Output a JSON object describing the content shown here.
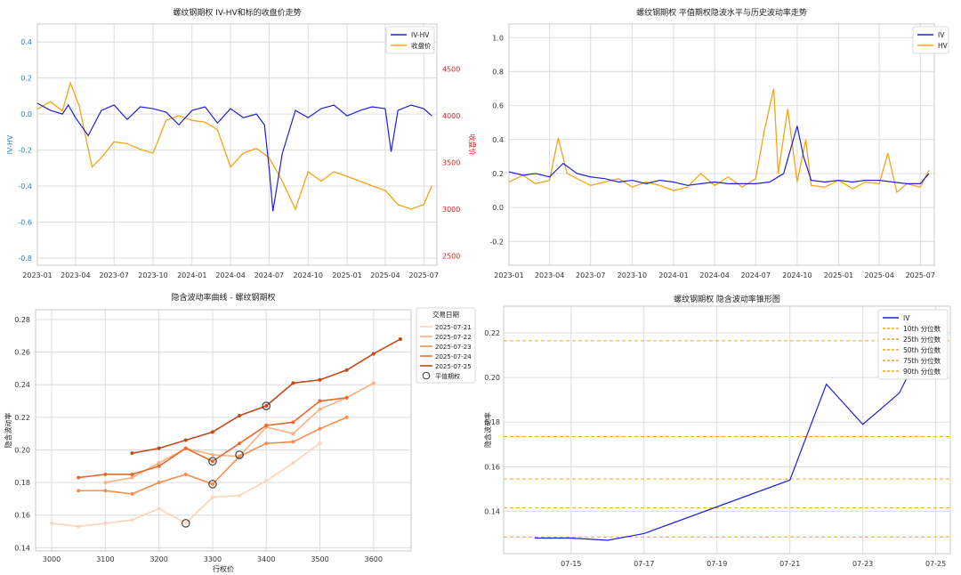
{
  "colors": {
    "iv": "#1f1fe0",
    "hv": "#f2a516",
    "price": "#f2a516",
    "iv_hv": "#1f1fe0",
    "axis_red": "#e02020",
    "axis_blue": "#2f7fbf",
    "grid": "#dcdcdc",
    "curve_palette": [
      "#fdd5b4",
      "#fcb07f",
      "#f98c4f",
      "#e7692c",
      "#c4481a"
    ],
    "pct_line": "#f2a516"
  },
  "chart_data": [
    {
      "id": "p1",
      "type": "line",
      "title": "螺纹钢期权 IV-HV和标的收盘价走势",
      "ylabel_left": "IV-HV",
      "ylabel_right": "收盘价",
      "left_ylim": [
        -0.84,
        0.5
      ],
      "left_yticks": [
        -0.8,
        -0.6,
        -0.4,
        -0.2,
        0.0,
        0.2,
        0.4
      ],
      "right_ylim": [
        2400,
        4980
      ],
      "right_yticks": [
        2500,
        3000,
        3500,
        4000,
        4500
      ],
      "xticks": [
        "2023-01",
        "2023-04",
        "2023-07",
        "2023-10",
        "2024-01",
        "2024-04",
        "2024-07",
        "2024-10",
        "2025-01",
        "2025-04",
        "2025-07"
      ],
      "legend": [
        "IV-HV",
        "收盘价"
      ],
      "legend_position": "top-right",
      "grid": true,
      "x_start": "2023-01-01",
      "x_end": "2025-08-01",
      "series": [
        {
          "name": "IV-HV",
          "axis": "left",
          "x": [
            "2023-01-01",
            "2023-02-01",
            "2023-03-01",
            "2023-03-15",
            "2023-04-01",
            "2023-05-01",
            "2023-06-01",
            "2023-07-01",
            "2023-08-01",
            "2023-09-01",
            "2023-10-01",
            "2023-11-01",
            "2023-12-01",
            "2024-01-01",
            "2024-02-01",
            "2024-03-01",
            "2024-04-01",
            "2024-05-01",
            "2024-06-01",
            "2024-06-20",
            "2024-07-01",
            "2024-07-10",
            "2024-08-01",
            "2024-09-01",
            "2024-10-01",
            "2024-11-01",
            "2024-12-01",
            "2025-01-01",
            "2025-02-01",
            "2025-03-01",
            "2025-04-01",
            "2025-04-15",
            "2025-05-01",
            "2025-06-01",
            "2025-07-01",
            "2025-07-20"
          ],
          "y": [
            0.06,
            0.02,
            0.0,
            0.05,
            -0.02,
            -0.12,
            0.02,
            0.05,
            -0.03,
            0.04,
            0.03,
            0.01,
            -0.06,
            0.02,
            0.04,
            -0.05,
            0.03,
            -0.02,
            0.0,
            -0.06,
            -0.3,
            -0.54,
            -0.22,
            0.02,
            -0.02,
            0.03,
            0.05,
            -0.01,
            0.02,
            0.04,
            0.03,
            -0.21,
            0.02,
            0.05,
            0.03,
            -0.01
          ]
        },
        {
          "name": "收盘价",
          "axis": "right",
          "x": [
            "2023-01-01",
            "2023-02-01",
            "2023-03-01",
            "2023-03-20",
            "2023-04-10",
            "2023-05-10",
            "2023-06-01",
            "2023-07-01",
            "2023-08-01",
            "2023-09-01",
            "2023-10-01",
            "2023-11-01",
            "2023-12-01",
            "2024-01-01",
            "2024-02-01",
            "2024-03-01",
            "2024-04-01",
            "2024-05-01",
            "2024-06-01",
            "2024-07-01",
            "2024-08-01",
            "2024-09-01",
            "2024-10-01",
            "2024-11-01",
            "2024-12-01",
            "2025-01-01",
            "2025-02-01",
            "2025-03-01",
            "2025-04-01",
            "2025-05-01",
            "2025-06-01",
            "2025-07-01",
            "2025-07-20"
          ],
          "y": [
            4070,
            4150,
            4050,
            4350,
            4100,
            3450,
            3550,
            3720,
            3700,
            3640,
            3600,
            3950,
            4000,
            3950,
            3930,
            3850,
            3450,
            3600,
            3650,
            3550,
            3300,
            3000,
            3400,
            3300,
            3400,
            3350,
            3300,
            3250,
            3200,
            3050,
            3000,
            3050,
            3250
          ]
        }
      ]
    },
    {
      "id": "p2",
      "type": "line",
      "title": "螺纹钢期权 平值期权隐波水平与历史波动率走势",
      "ylim": [
        -0.34,
        1.08
      ],
      "yticks": [
        -0.2,
        0.0,
        0.2,
        0.4,
        0.6,
        0.8,
        1.0
      ],
      "xticks": [
        "2023-01",
        "2023-04",
        "2023-07",
        "2023-10",
        "2024-01",
        "2024-04",
        "2024-07",
        "2024-10",
        "2025-01",
        "2025-04",
        "2025-07"
      ],
      "legend": [
        "IV",
        "HV"
      ],
      "legend_position": "top-right",
      "grid": true,
      "x_start": "2023-01-01",
      "x_end": "2025-08-01",
      "series": [
        {
          "name": "IV",
          "x": [
            "2023-01-01",
            "2023-02-01",
            "2023-03-01",
            "2023-04-01",
            "2023-05-01",
            "2023-06-01",
            "2023-07-01",
            "2023-08-01",
            "2023-09-01",
            "2023-10-01",
            "2023-11-01",
            "2023-12-01",
            "2024-01-01",
            "2024-02-01",
            "2024-03-01",
            "2024-04-01",
            "2024-05-01",
            "2024-06-01",
            "2024-07-01",
            "2024-08-01",
            "2024-09-01",
            "2024-10-01",
            "2024-10-15",
            "2024-11-01",
            "2024-12-01",
            "2025-01-01",
            "2025-02-01",
            "2025-03-01",
            "2025-04-01",
            "2025-05-01",
            "2025-06-01",
            "2025-07-01",
            "2025-07-20"
          ],
          "y": [
            0.21,
            0.19,
            0.2,
            0.18,
            0.26,
            0.2,
            0.18,
            0.17,
            0.15,
            0.16,
            0.14,
            0.16,
            0.15,
            0.13,
            0.14,
            0.15,
            0.14,
            0.14,
            0.14,
            0.15,
            0.2,
            0.48,
            0.3,
            0.16,
            0.15,
            0.16,
            0.15,
            0.16,
            0.16,
            0.15,
            0.14,
            0.14,
            0.2
          ]
        },
        {
          "name": "HV",
          "x": [
            "2023-01-01",
            "2023-02-01",
            "2023-03-01",
            "2023-04-01",
            "2023-04-20",
            "2023-05-10",
            "2023-06-01",
            "2023-07-01",
            "2023-08-01",
            "2023-09-01",
            "2023-10-01",
            "2023-11-01",
            "2023-12-01",
            "2024-01-01",
            "2024-02-01",
            "2024-03-01",
            "2024-04-01",
            "2024-05-01",
            "2024-06-01",
            "2024-07-01",
            "2024-07-20",
            "2024-08-10",
            "2024-08-20",
            "2024-09-10",
            "2024-10-01",
            "2024-10-20",
            "2024-11-01",
            "2024-12-01",
            "2025-01-01",
            "2025-02-01",
            "2025-03-01",
            "2025-04-01",
            "2025-04-20",
            "2025-05-10",
            "2025-06-01",
            "2025-07-01",
            "2025-07-20"
          ],
          "y": [
            0.15,
            0.19,
            0.14,
            0.16,
            0.41,
            0.2,
            0.17,
            0.13,
            0.15,
            0.17,
            0.12,
            0.15,
            0.13,
            0.1,
            0.12,
            0.2,
            0.13,
            0.18,
            0.12,
            0.17,
            0.45,
            0.7,
            0.2,
            0.58,
            0.15,
            0.4,
            0.13,
            0.12,
            0.16,
            0.11,
            0.15,
            0.14,
            0.32,
            0.09,
            0.14,
            0.12,
            0.22
          ]
        }
      ]
    },
    {
      "id": "p3",
      "type": "line",
      "title": "隐含波动率曲线 - 螺纹钢期权",
      "xlabel": "行权价",
      "ylabel": "隐含波动率",
      "xlim": [
        2970,
        3670
      ],
      "ylim": [
        0.138,
        0.286
      ],
      "xticks": [
        3000,
        3100,
        3200,
        3300,
        3400,
        3500,
        3600
      ],
      "yticks": [
        0.14,
        0.16,
        0.18,
        0.2,
        0.22,
        0.24,
        0.26,
        0.28
      ],
      "legend_title": "交易日期",
      "legend": [
        "2025-07-21",
        "2025-07-22",
        "2025-07-23",
        "2025-07-24",
        "2025-07-25",
        "平值期权"
      ],
      "legend_position": "outside right",
      "grid": true,
      "series": [
        {
          "name": "2025-07-21",
          "x": [
            3000,
            3050,
            3100,
            3150,
            3200,
            3250,
            3300,
            3350,
            3400,
            3450,
            3500
          ],
          "y": [
            0.155,
            0.153,
            0.155,
            0.157,
            0.164,
            0.155,
            0.171,
            0.172,
            0.181,
            0.192,
            0.204
          ]
        },
        {
          "name": "2025-07-22",
          "x": [
            3100,
            3150,
            3200,
            3250,
            3300,
            3350,
            3400,
            3450,
            3500,
            3550,
            3600
          ],
          "y": [
            0.18,
            0.183,
            0.192,
            0.201,
            0.197,
            0.196,
            0.214,
            0.21,
            0.225,
            0.232,
            0.241
          ]
        },
        {
          "name": "2025-07-23",
          "x": [
            3050,
            3100,
            3150,
            3200,
            3250,
            3300,
            3350,
            3400,
            3450,
            3500,
            3550
          ],
          "y": [
            0.175,
            0.175,
            0.173,
            0.18,
            0.185,
            0.179,
            0.196,
            0.204,
            0.205,
            0.213,
            0.22
          ]
        },
        {
          "name": "2025-07-24",
          "x": [
            3050,
            3100,
            3150,
            3200,
            3250,
            3300,
            3350,
            3400,
            3450,
            3500,
            3550
          ],
          "y": [
            0.183,
            0.185,
            0.185,
            0.19,
            0.201,
            0.193,
            0.204,
            0.215,
            0.217,
            0.23,
            0.232
          ]
        },
        {
          "name": "2025-07-25",
          "x": [
            3150,
            3200,
            3250,
            3300,
            3350,
            3400,
            3450,
            3500,
            3550,
            3600,
            3650
          ],
          "y": [
            0.198,
            0.201,
            0.206,
            0.211,
            0.221,
            0.227,
            0.241,
            0.243,
            0.249,
            0.259,
            0.268
          ]
        }
      ],
      "atm_points": {
        "name": "平值期权",
        "x": [
          3250,
          3300,
          3300,
          3350,
          3400
        ],
        "y": [
          0.155,
          0.179,
          0.193,
          0.197,
          0.227
        ]
      }
    },
    {
      "id": "p4",
      "type": "line",
      "title": "螺纹钢期权 隐含波动率锥形图",
      "ylabel": "隐含波动率",
      "xlim_days": [
        13.15,
        25.4
      ],
      "ylim": [
        0.121,
        0.232
      ],
      "xticks": [
        "07-15",
        "07-17",
        "07-19",
        "07-21",
        "07-23",
        "07-25"
      ],
      "xtick_days": [
        15,
        17,
        19,
        21,
        23,
        25
      ],
      "yticks": [
        0.14,
        0.16,
        0.18,
        0.2,
        0.22
      ],
      "legend": [
        "IV",
        "10th 分位数",
        "25th 分位数",
        "50th 分位数",
        "75th 分位数",
        "90th 分位数"
      ],
      "legend_position": "top-right",
      "grid": true,
      "series": [
        {
          "name": "IV",
          "x": [
            14,
            15,
            16,
            17,
            21,
            22,
            23,
            24,
            25
          ],
          "y": [
            0.128,
            0.128,
            0.127,
            0.13,
            0.154,
            0.197,
            0.179,
            0.193,
            0.226
          ]
        }
      ],
      "percentiles": [
        {
          "name": "10th 分位数",
          "value": 0.1285
        },
        {
          "name": "25th 分位数",
          "value": 0.1415
        },
        {
          "name": "50th 分位数",
          "value": 0.1545
        },
        {
          "name": "75th 分位数",
          "value": 0.1735
        },
        {
          "name": "90th 分位数",
          "value": 0.2165
        }
      ]
    }
  ]
}
